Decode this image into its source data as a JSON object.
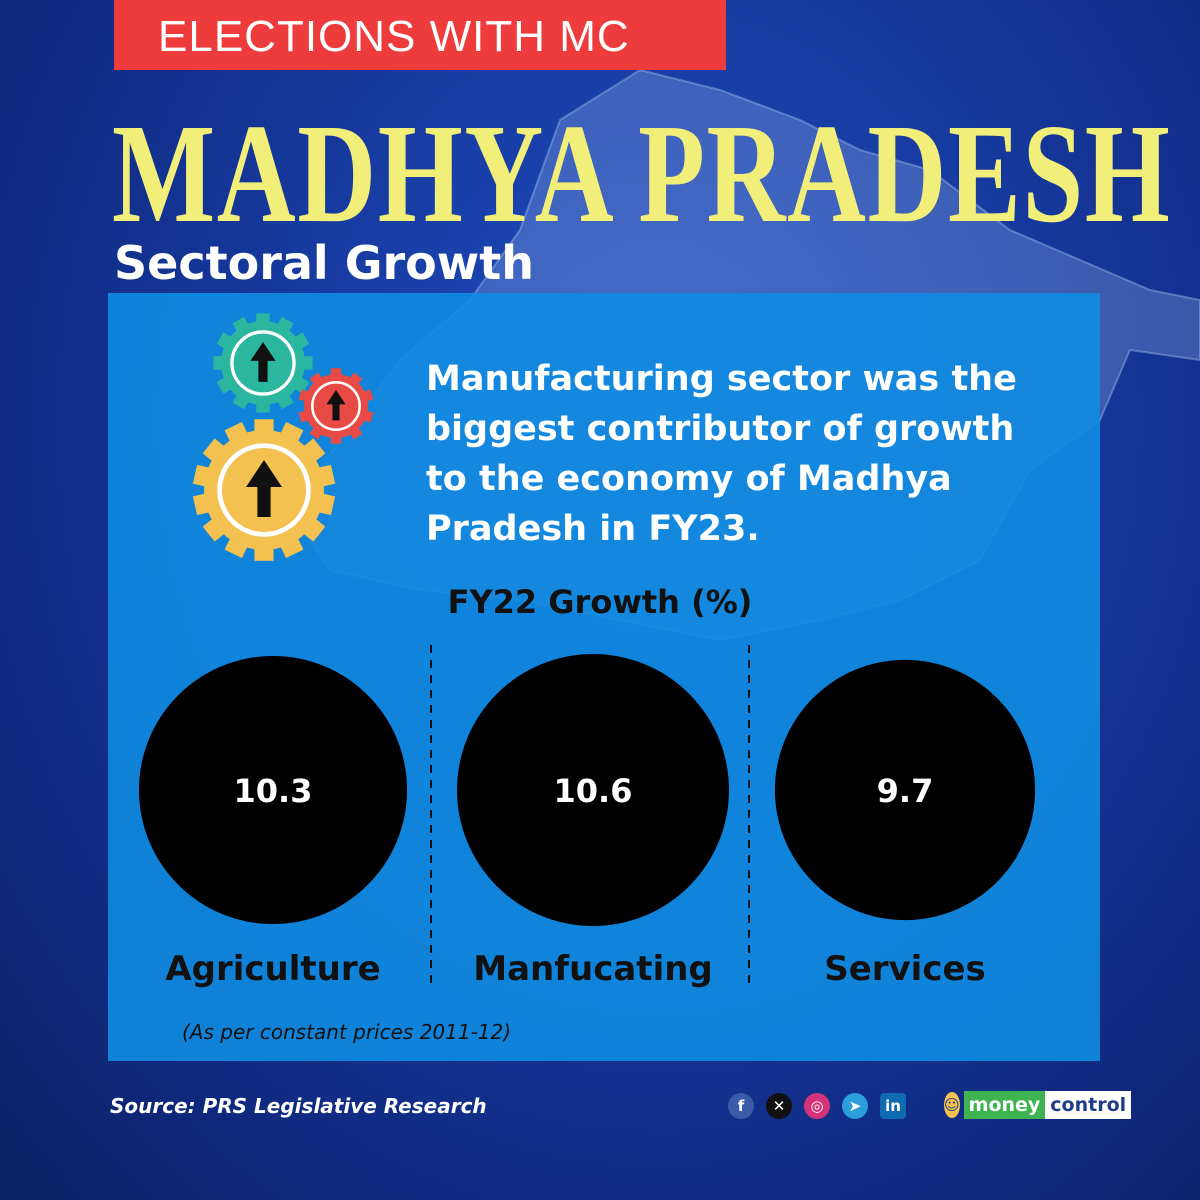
{
  "header": {
    "badge": "ELECTIONS WITH MC",
    "title": "MADHYA PRADESH",
    "subtitle": "Sectoral Growth"
  },
  "headline": "Manufacturing sector was the biggest contributor of growth to the economy of Madhya Pradesh in FY23.",
  "chart_data": {
    "type": "bubble",
    "title": "FY22 Growth (%)",
    "categories": [
      "Agriculture",
      "Manfucating",
      "Services"
    ],
    "values": [
      10.3,
      10.6,
      9.7
    ],
    "value_labels": [
      "10.3",
      "10.6",
      "9.7"
    ],
    "note": "(As per constant prices 2011-12)"
  },
  "footer": {
    "source": "Source: PRS Legislative Research",
    "social_icons": [
      "facebook-icon",
      "x-icon",
      "instagram-icon",
      "telegram-icon",
      "linkedin-icon",
      "moneycontrol-mascot-icon"
    ],
    "logo_part1": "money",
    "logo_part2": "control"
  },
  "colors": {
    "badge": "#ee3b3b",
    "title": "#f2ee7a",
    "panel": "#108ce1",
    "bubble": "#000000",
    "gear_teal": "#2bb6a0",
    "gear_red": "#e84b45",
    "gear_yellow": "#f3c14f"
  }
}
